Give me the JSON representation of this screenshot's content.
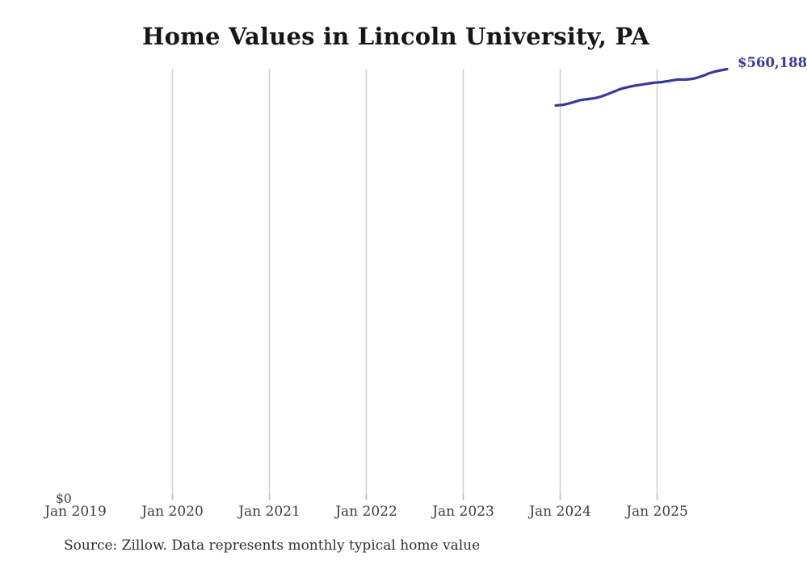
{
  "page": {
    "background": "#ffffff"
  },
  "chart_data": {
    "type": "line",
    "title": "Home Values in Lincoln University, PA",
    "grid": "vertical-only",
    "legend_position": "none",
    "gridline_color": "#d0d0d0",
    "x_axis": {
      "ticks": [
        "Jan 2019",
        "Jan 2020",
        "Jan 2021",
        "Jan 2022",
        "Jan 2023",
        "Jan 2024",
        "Jan 2025"
      ],
      "gridlines_at": [
        "Jan 2020",
        "Jan 2021",
        "Jan 2022",
        "Jan 2023",
        "Jan 2024",
        "Jan 2025"
      ]
    },
    "y_axis": {
      "min": 0,
      "min_label": "$0",
      "max_estimate": 560188
    },
    "series": [
      {
        "name": "Monthly typical home value",
        "color": "#38389b",
        "x": [
          "Dec 2023",
          "Jan 2024",
          "Feb 2024",
          "Mar 2024",
          "Apr 2024",
          "May 2024",
          "Jun 2024",
          "Jul 2024",
          "Aug 2024",
          "Sep 2024",
          "Oct 2024",
          "Nov 2024",
          "Dec 2024",
          "Jan 2025",
          "Feb 2025",
          "Mar 2025",
          "Apr 2025",
          "May 2025",
          "Jun 2025",
          "Jul 2025",
          "Aug 2025",
          "Sep 2025"
        ],
        "values": [
          512900,
          514000,
          516600,
          519800,
          521300,
          522900,
          526100,
          530300,
          534500,
          537100,
          539200,
          540800,
          542400,
          543400,
          545000,
          546600,
          546600,
          548100,
          551300,
          555500,
          558100,
          560188
        ]
      }
    ],
    "latest_value_label": "$560,188",
    "source_note": "Source: Zillow. Data represents monthly typical home value"
  }
}
